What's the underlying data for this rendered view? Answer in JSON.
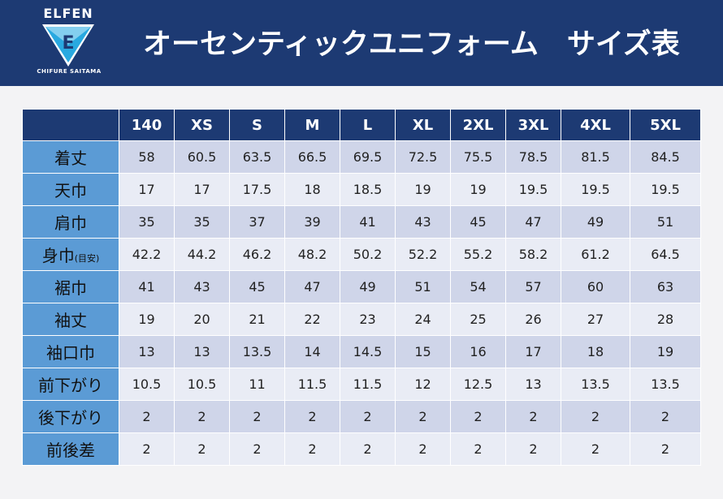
{
  "header": {
    "logo": {
      "name": "ELFEN",
      "letter": "E",
      "sub": "CHIFURE SAITAMA"
    },
    "title": "オーセンティックユニフォーム　サイズ表"
  },
  "table": {
    "sizes": [
      "140",
      "XS",
      "S",
      "M",
      "L",
      "XL",
      "2XL",
      "3XL",
      "4XL",
      "5XL"
    ],
    "rows": [
      {
        "label": "着丈",
        "note": "",
        "values": [
          "58",
          "60.5",
          "63.5",
          "66.5",
          "69.5",
          "72.5",
          "75.5",
          "78.5",
          "81.5",
          "84.5"
        ]
      },
      {
        "label": "天巾",
        "note": "",
        "values": [
          "17",
          "17",
          "17.5",
          "18",
          "18.5",
          "19",
          "19",
          "19.5",
          "19.5",
          "19.5"
        ]
      },
      {
        "label": "肩巾",
        "note": "",
        "values": [
          "35",
          "35",
          "37",
          "39",
          "41",
          "43",
          "45",
          "47",
          "49",
          "51"
        ]
      },
      {
        "label": "身巾",
        "note": "(目安)",
        "values": [
          "42.2",
          "44.2",
          "46.2",
          "48.2",
          "50.2",
          "52.2",
          "55.2",
          "58.2",
          "61.2",
          "64.5"
        ]
      },
      {
        "label": "裾巾",
        "note": "",
        "values": [
          "41",
          "43",
          "45",
          "47",
          "49",
          "51",
          "54",
          "57",
          "60",
          "63"
        ]
      },
      {
        "label": "袖丈",
        "note": "",
        "values": [
          "19",
          "20",
          "21",
          "22",
          "23",
          "24",
          "25",
          "26",
          "27",
          "28"
        ]
      },
      {
        "label": "袖口巾",
        "note": "",
        "values": [
          "13",
          "13",
          "13.5",
          "14",
          "14.5",
          "15",
          "16",
          "17",
          "18",
          "19"
        ]
      },
      {
        "label": "前下がり",
        "note": "",
        "values": [
          "10.5",
          "10.5",
          "11",
          "11.5",
          "11.5",
          "12",
          "12.5",
          "13",
          "13.5",
          "13.5"
        ]
      },
      {
        "label": "後下がり",
        "note": "",
        "values": [
          "2",
          "2",
          "2",
          "2",
          "2",
          "2",
          "2",
          "2",
          "2",
          "2"
        ]
      },
      {
        "label": "前後差",
        "note": "",
        "values": [
          "2",
          "2",
          "2",
          "2",
          "2",
          "2",
          "2",
          "2",
          "2",
          "2"
        ]
      }
    ]
  },
  "colors": {
    "header_bg": "#1d3a73",
    "label_bg": "#5b9bd5",
    "row_odd": "#cfd5e9",
    "row_even": "#e9ecf5"
  }
}
